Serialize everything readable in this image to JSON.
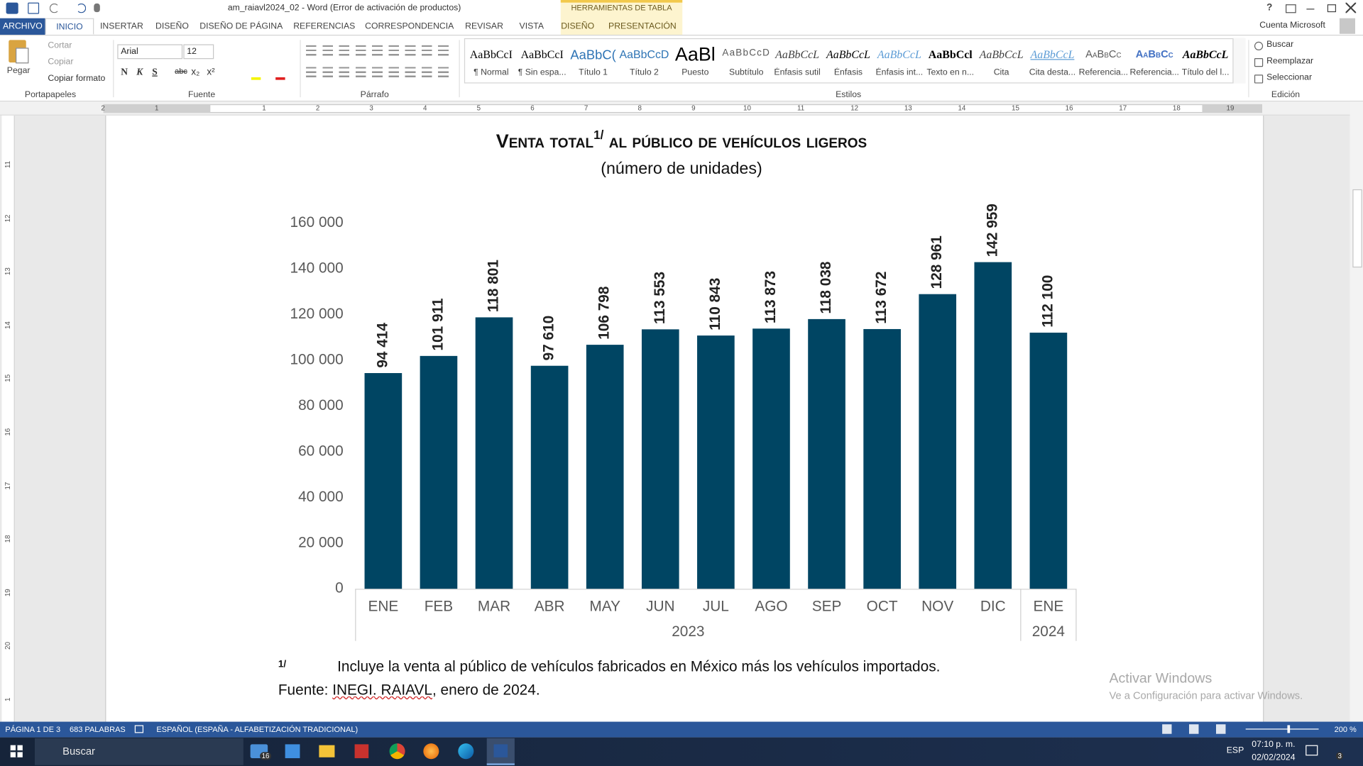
{
  "window": {
    "title": "am_raiavl2024_02 - Word (Error de activación de productos)",
    "contextual_group": "HERRAMIENTAS DE TABLA",
    "help": "?",
    "account": "Cuenta Microsoft"
  },
  "tabs": [
    "ARCHIVO",
    "INICIO",
    "INSERTAR",
    "DISEÑO",
    "DISEÑO DE PÁGINA",
    "REFERENCIAS",
    "CORRESPONDENCIA",
    "REVISAR",
    "VISTA",
    "DISEÑO",
    "PRESENTACIÓN"
  ],
  "ribbon": {
    "clipboard": {
      "paste": "Pegar",
      "cut": "Cortar",
      "copy": "Copiar",
      "format_painter": "Copiar formato",
      "label": "Portapapeles"
    },
    "font": {
      "name": "Arial",
      "size": "12",
      "buttons": [
        "N",
        "K",
        "S",
        "abc",
        "x₂",
        "x²"
      ],
      "label": "Fuente"
    },
    "paragraph": {
      "label": "Párrafo"
    },
    "styles": {
      "label": "Estilos",
      "items": [
        {
          "preview": "AaBbCcI",
          "name": "¶ Normal"
        },
        {
          "preview": "AaBbCcI",
          "name": "¶ Sin espa..."
        },
        {
          "preview": "AaBbC(",
          "name": "Título 1"
        },
        {
          "preview": "AaBbCcD",
          "name": "Título 2"
        },
        {
          "preview": "AaBl",
          "name": "Puesto"
        },
        {
          "preview": "AaBbCcD",
          "name": "Subtítulo"
        },
        {
          "preview": "AaBbCcL",
          "name": "Énfasis sutil"
        },
        {
          "preview": "AaBbCcL",
          "name": "Énfasis"
        },
        {
          "preview": "AaBbCcL",
          "name": "Énfasis int..."
        },
        {
          "preview": "AaBbCcl",
          "name": "Texto en n..."
        },
        {
          "preview": "AaBbCcL",
          "name": "Cita"
        },
        {
          "preview": "AaBbCcL",
          "name": "Cita desta..."
        },
        {
          "preview": "AaBbCc",
          "name": "Referencia..."
        },
        {
          "preview": "AaBbCc",
          "name": "Referencia..."
        },
        {
          "preview": "AaBbCcL",
          "name": "Título del l..."
        }
      ]
    },
    "editing": {
      "label": "Edición",
      "items": [
        "Buscar",
        "Reemplazar",
        "Seleccionar"
      ]
    }
  },
  "ruler": {
    "horizontal": [
      "2",
      "1",
      "1",
      "2",
      "3",
      "4",
      "5",
      "6",
      "7",
      "8",
      "9",
      "10",
      "11",
      "12",
      "13",
      "14",
      "15",
      "16",
      "17",
      "18",
      "19"
    ],
    "vertical": [
      "11",
      "12",
      "13",
      "14",
      "15",
      "16",
      "17",
      "18",
      "19",
      "20",
      "1"
    ]
  },
  "chart_data": {
    "type": "bar",
    "title": "Venta total",
    "title_superscript": "1/",
    "title_rest": "al público de vehículos ligeros",
    "subtitle": "(número de unidades)",
    "categories": [
      "ENE",
      "FEB",
      "MAR",
      "ABR",
      "MAY",
      "JUN",
      "JUL",
      "AGO",
      "SEP",
      "OCT",
      "NOV",
      "DIC",
      "ENE"
    ],
    "year_labels": [
      "2023",
      "2024"
    ],
    "values": [
      94414,
      101911,
      118801,
      97610,
      106798,
      113553,
      110843,
      113873,
      118038,
      113672,
      128961,
      142959,
      112100
    ],
    "value_labels": [
      "94 414",
      "101 911",
      "118 801",
      "97 610",
      "106 798",
      "113 553",
      "110 843",
      "113 873",
      "118 038",
      "113 672",
      "128 961",
      "142 959",
      "112 100"
    ],
    "color": "#004563",
    "ylim": [
      0,
      160000
    ],
    "yticks": [
      0,
      {
        "value": 20000,
        "label": "20 000"
      },
      {
        "value": 40000,
        "label": "40 000"
      },
      {
        "value": 60000,
        "label": "60 000"
      },
      {
        "value": 80000,
        "label": "80 000"
      },
      {
        "value": 100000,
        "label": "100 000"
      },
      {
        "value": 120000,
        "label": "120 000"
      },
      {
        "value": 140000,
        "label": "140 000"
      },
      {
        "value": 160000,
        "label": "160 000"
      }
    ],
    "grid": false
  },
  "footnote": {
    "mark": "1/",
    "text": "Incluye la venta al público de vehículos fabricados en México más los vehículos importados."
  },
  "source": {
    "prefix": "Fuente:",
    "org": "INEGI. RAIAVL",
    "suffix": ", enero de 2024."
  },
  "watermark": {
    "title": "Activar Windows",
    "text": "Ve a Configuración para activar Windows."
  },
  "status_bar": {
    "page": "PÁGINA 1 DE 3",
    "words": "683 PALABRAS",
    "language": "ESPAÑOL (ESPAÑA - ALFABETIZACIÓN TRADICIONAL)",
    "zoom": "200 %"
  },
  "taskbar": {
    "search": "Buscar",
    "mail_badge": "16",
    "language": "ESP",
    "time": "07:10 p. m.",
    "date": "02/02/2024",
    "notifications": "3"
  }
}
